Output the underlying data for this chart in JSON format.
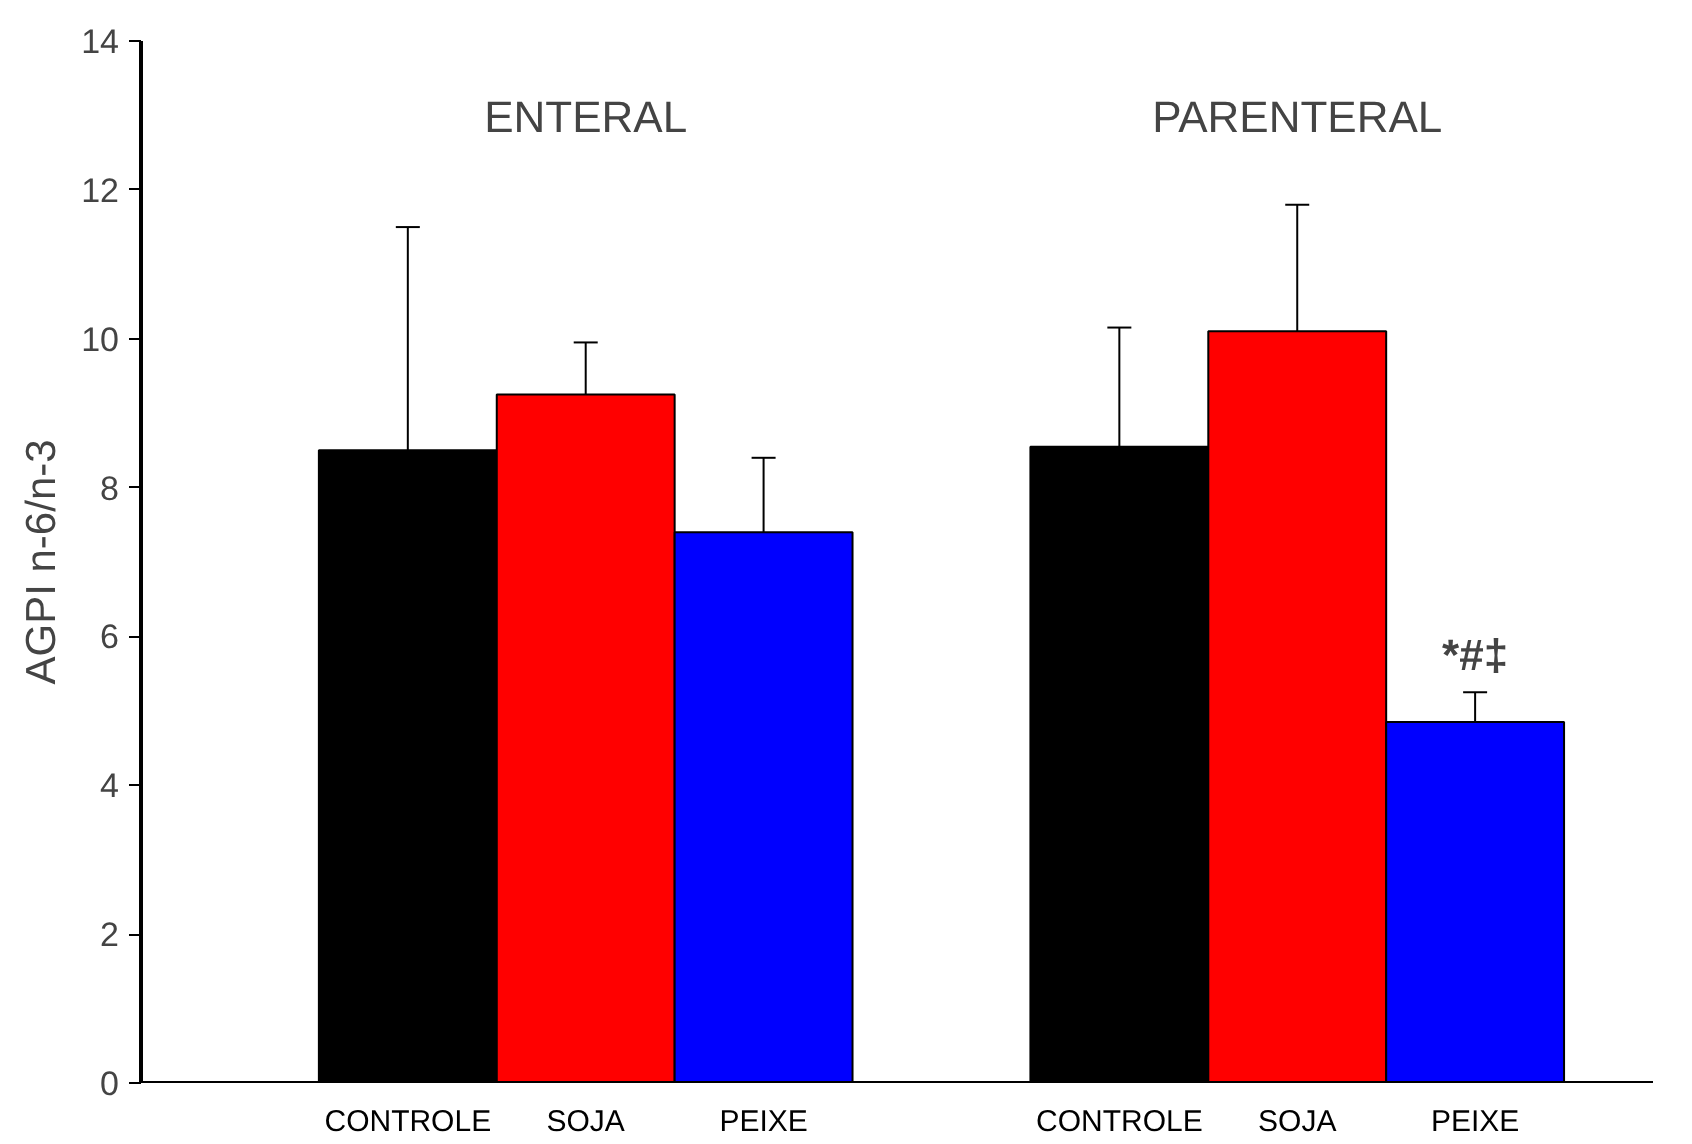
{
  "chart_data": {
    "type": "bar",
    "ylabel": "AGPI n-6/n-3",
    "categories": [
      "ENTERAL",
      "PARENTERAL"
    ],
    "series": [
      {
        "name": "CONTROLE",
        "color": "#000000",
        "values": [
          8.5,
          8.55
        ],
        "errors": [
          3.0,
          1.6
        ]
      },
      {
        "name": "SOJA",
        "color": "#ff0000",
        "values": [
          9.25,
          10.1
        ],
        "errors": [
          0.7,
          1.7
        ]
      },
      {
        "name": "PEIXE",
        "color": "#0000ff",
        "values": [
          7.4,
          4.85
        ],
        "errors": [
          1.0,
          0.4
        ]
      }
    ],
    "ylim": [
      0,
      14
    ],
    "yticks": [
      0,
      2,
      4,
      6,
      8,
      10,
      12,
      14
    ],
    "grid": false,
    "annotations": [
      "*#‡"
    ]
  }
}
